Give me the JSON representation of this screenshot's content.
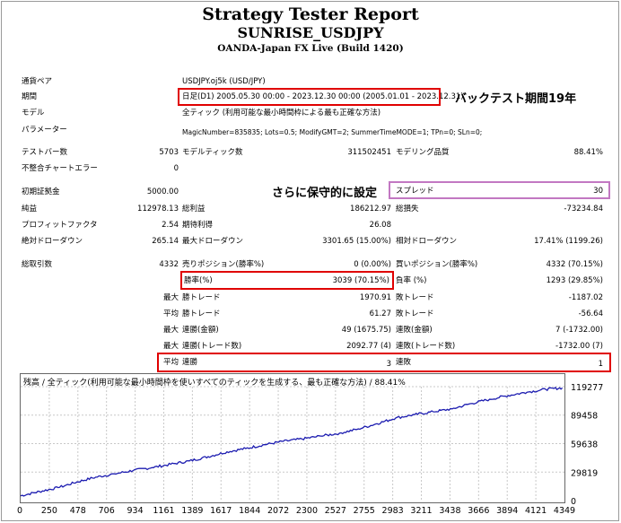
{
  "header": {
    "title": "Strategy Tester Report",
    "symbol": "SUNRISE_USDJPY",
    "server": "OANDA-Japan FX Live (Build 1420)"
  },
  "settings": {
    "pair_label": "通貨ペア",
    "pair_value": "USDJPY.oj5k (USD/JPY)",
    "period_label": "期間",
    "period_value": "日足(D1) 2005.05.30 00:00 - 2023.12.30 00:00 (2005.01.01 - 2023.12.31)",
    "model_label": "モデル",
    "model_value": "全ティック (利用可能な最小時間枠による最も正確な方法)",
    "params_label": "パラメーター",
    "params_value": "MagicNumber=835835; Lots=0.5; ModifyGMT=2; SummerTimeMODE=1; TPn=0; SLn=0;"
  },
  "stats": {
    "bars_label": "テストバー数",
    "bars_value": "5703",
    "ticks_label": "モデルティック数",
    "ticks_value": "311502451",
    "quality_label": "モデリング品質",
    "quality_value": "88.41%",
    "mismatch_label": "不整合チャートエラー",
    "mismatch_value": "0",
    "deposit_label": "初期証拠金",
    "deposit_value": "5000.00",
    "spread_label": "スプレッド",
    "spread_value": "30",
    "net_label": "純益",
    "net_value": "112978.13",
    "gross_profit_label": "総利益",
    "gross_profit_value": "186212.97",
    "gross_loss_label": "総損失",
    "gross_loss_value": "-73234.84",
    "pf_label": "プロフィットファクタ",
    "pf_value": "2.54",
    "expected_label": "期待利得",
    "expected_value": "26.08",
    "abs_dd_label": "絶対ドローダウン",
    "abs_dd_value": "265.14",
    "max_dd_label": "最大ドローダウン",
    "max_dd_value": "3301.65 (15.00%)",
    "rel_dd_label": "相対ドローダウン",
    "rel_dd_value": "17.41% (1199.26)",
    "trades_label": "総取引数",
    "trades_value": "4332",
    "short_label": "売りポジション(勝率%)",
    "short_value": "0 (0.00%)",
    "long_label": "買いポジション(勝率%)",
    "long_value": "4332 (70.15%)",
    "winrate_label": "勝率(%)",
    "winrate_value": "3039 (70.15%)",
    "lossrate_label": "負率 (%)",
    "lossrate_value": "1293 (29.85%)",
    "max_label": "最大",
    "avg_label": "平均",
    "win_trade_label": "勝トレード",
    "max_win_value": "1970.91",
    "avg_win_value": "61.27",
    "loss_trade_label": "敗トレード",
    "max_loss_value": "-1187.02",
    "avg_loss_value": "-56.64",
    "consec_win_money_label": "連勝(金額)",
    "consec_win_money_value": "49 (1675.75)",
    "consec_loss_money_label": "連敗(金額)",
    "consec_loss_money_value": "7 (-1732.00)",
    "consec_profit_label": "連勝(トレード数)",
    "consec_profit_value": "2092.77 (4)",
    "consec_lossn_label": "連敗(トレード数)",
    "consec_lossn_value": "-1732.00 (7)",
    "avg_consec_win_label": "連勝",
    "avg_consec_win_value": "3",
    "avg_consec_loss_label": "連敗",
    "avg_consec_loss_value": "1"
  },
  "annotations": {
    "period_note": "バックテスト期間19年",
    "spread_note": "さらに保守的に設定"
  },
  "colors": {
    "highlight": "#e00000",
    "spread_box": "#c278c2",
    "equity_line": "#1c1cb0",
    "grid": "#c8c8c8"
  },
  "chart_data": {
    "type": "line",
    "title": "残高 / 全ティック(利用可能な最小時間枠を使いすべてのティックを生成する、最も正確な方法) / 88.41%",
    "x_ticks": [
      "0",
      "250",
      "478",
      "706",
      "934",
      "1161",
      "1389",
      "1617",
      "1844",
      "2072",
      "2300",
      "2527",
      "2755",
      "2983",
      "3211",
      "3438",
      "3666",
      "3894",
      "4121",
      "4349"
    ],
    "y_ticks": [
      "0",
      "29819",
      "59638",
      "89458",
      "119277"
    ],
    "xlim": [
      0,
      4349
    ],
    "ylim": [
      0,
      119277
    ],
    "series": [
      {
        "values_x": [
          0,
          150,
          300,
          450,
          600,
          750,
          900,
          1050,
          1200,
          1350,
          1500,
          1650,
          1800,
          1950,
          2100,
          2250,
          2400,
          2550,
          2700,
          2850,
          3000,
          3150,
          3300,
          3450,
          3600,
          3750,
          3900,
          4050,
          4200,
          4332
        ],
        "values_y": [
          5000,
          9500,
          13500,
          19500,
          24500,
          28000,
          31500,
          34500,
          38000,
          41500,
          46000,
          51000,
          54500,
          58500,
          62000,
          64500,
          67500,
          70500,
          75000,
          80500,
          86500,
          90000,
          93000,
          96000,
          101500,
          106000,
          110000,
          113500,
          116500,
          117978
        ]
      }
    ]
  }
}
